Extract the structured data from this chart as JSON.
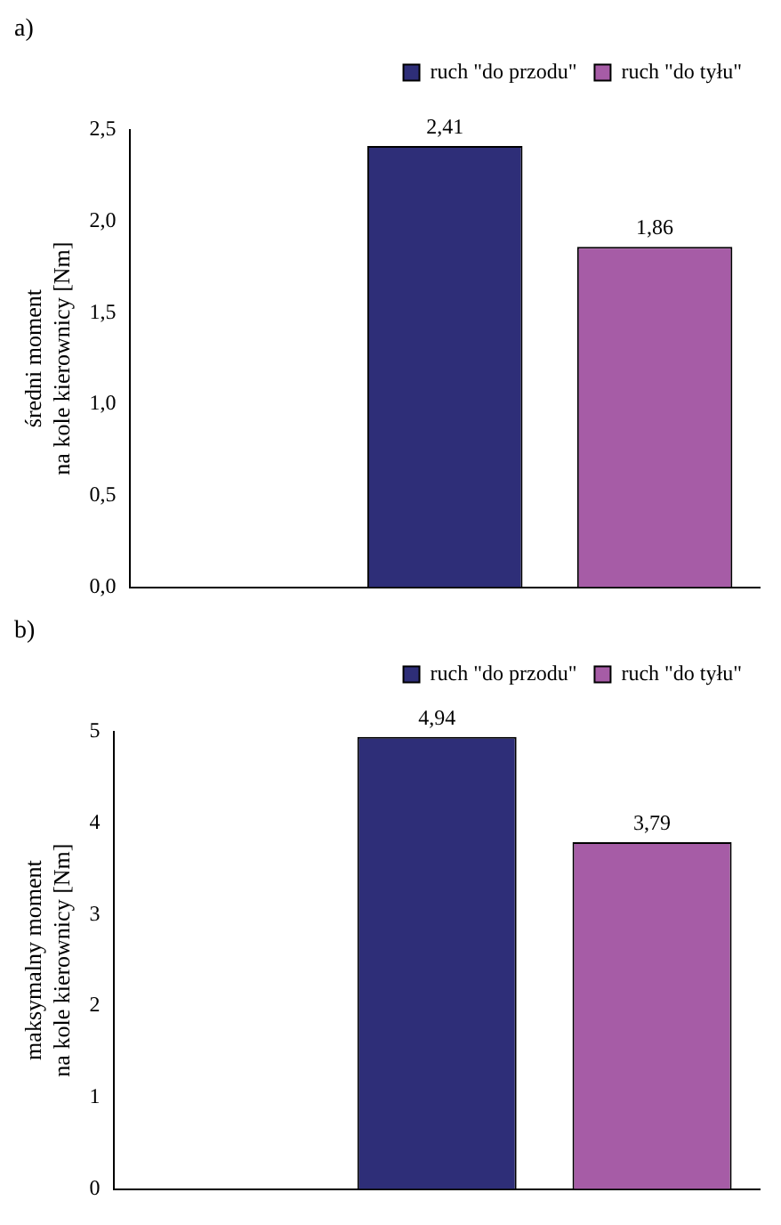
{
  "chart_data": [
    {
      "type": "bar",
      "title": "a)",
      "ylabel": "średni moment\nna kole kierownicy [Nm]",
      "categories": [
        null,
        null,
        null
      ],
      "legend": "top",
      "grid": false,
      "ylim": [
        0,
        2.5
      ],
      "yticks": [
        {
          "value": 0,
          "label": "0,0"
        },
        {
          "value": 0.5,
          "label": "0,5"
        },
        {
          "value": 1,
          "label": "1,0"
        },
        {
          "value": 1.5,
          "label": "1,5"
        },
        {
          "value": 2,
          "label": "2,0"
        },
        {
          "value": 2.5,
          "label": "2,5"
        }
      ],
      "series": [
        {
          "name": "ruch \"do przodu\"",
          "color": "#2e2e78",
          "values": [
            null,
            2.41,
            null
          ],
          "value_labels": [
            null,
            "2,41",
            null
          ]
        },
        {
          "name": "ruch \"do tyłu\"",
          "color": "#a65ca6",
          "values": [
            null,
            null,
            1.86
          ],
          "value_labels": [
            null,
            null,
            "1,86"
          ]
        }
      ]
    },
    {
      "type": "bar",
      "title": "b)",
      "ylabel": "maksymalny moment\nna kole kierownicy [Nm]",
      "categories": [
        null,
        null,
        null
      ],
      "legend": "top",
      "grid": false,
      "ylim": [
        0,
        5
      ],
      "yticks": [
        0,
        1,
        2,
        3,
        4,
        5
      ],
      "series": [
        {
          "name": "ruch \"do przodu\"",
          "color": "#2e2e78",
          "values": [
            null,
            4.94,
            null
          ],
          "value_labels": [
            null,
            "4,94",
            null
          ]
        },
        {
          "name": "ruch \"do tyłu\"",
          "color": "#a65ca6",
          "values": [
            null,
            null,
            3.79
          ],
          "value_labels": [
            null,
            null,
            "3,79"
          ]
        }
      ]
    }
  ]
}
